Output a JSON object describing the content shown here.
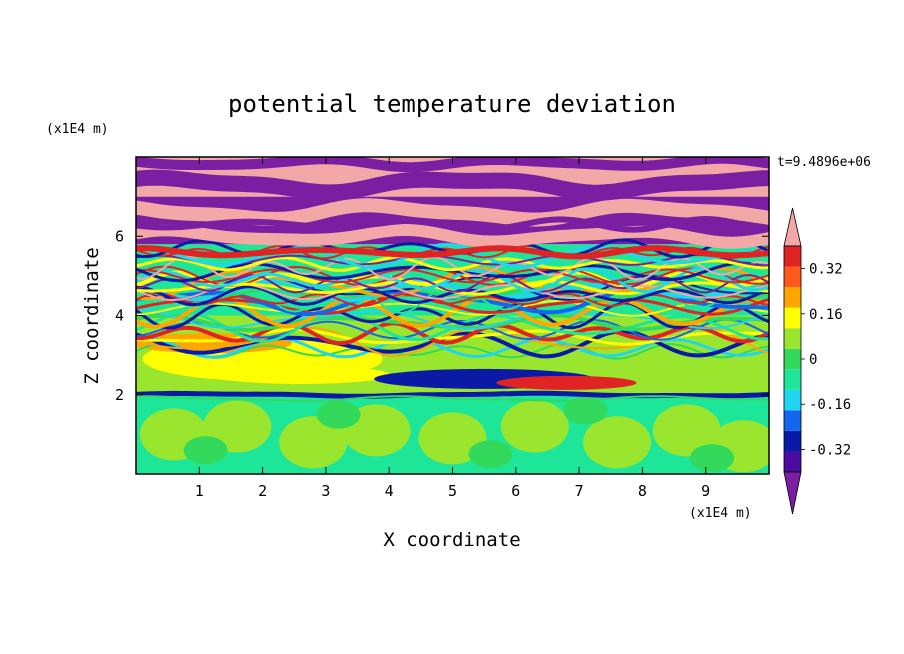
{
  "chart_data": {
    "type": "heatmap",
    "title": "potential temperature deviation",
    "xlabel": "X coordinate",
    "ylabel": "Z coordinate",
    "x_unit": "(x1E4 m)",
    "y_unit": "(x1E4 m)",
    "time_label": "t=9.4896e+06",
    "xlim": [
      0,
      10
    ],
    "ylim": [
      0,
      8
    ],
    "x_ticks": [
      1,
      2,
      3,
      4,
      5,
      6,
      7,
      8,
      9
    ],
    "y_ticks": [
      2,
      4,
      6
    ],
    "colorbar": {
      "levels": [
        -0.48,
        -0.4,
        -0.32,
        -0.24,
        -0.16,
        -0.08,
        0,
        0.08,
        0.16,
        0.24,
        0.32,
        0.4,
        0.48
      ],
      "labels": [
        "-0.32",
        "-0.16",
        "0",
        "0.16",
        "0.32"
      ],
      "label_values": [
        -0.32,
        -0.16,
        0,
        0.16,
        0.32
      ],
      "colors": [
        "#7a1fa2",
        "#4b0ba0",
        "#0a1aa6",
        "#1466ee",
        "#1fd6f0",
        "#1ee699",
        "#33d95a",
        "#9ae62e",
        "#ffff00",
        "#ffa500",
        "#ff5a1a",
        "#e02424",
        "#f4a7a7"
      ]
    },
    "layers": [
      {
        "z_range": [
          7.0,
          8.0
        ],
        "description_color": "#f4a7a7",
        "alt_color": "#7a1fa2"
      },
      {
        "z_range": [
          5.8,
          7.0
        ],
        "description_color": "#7a1fa2",
        "alt_color": "#f4a7a7"
      },
      {
        "z_range": [
          4.0,
          5.8
        ],
        "description_color": "#9ae62e",
        "alt_color": "#e02424"
      },
      {
        "z_range": [
          2.0,
          4.0
        ],
        "description_color": "#ffff00",
        "alt_color": "#33d95a"
      },
      {
        "z_range": [
          0.0,
          2.0
        ],
        "description_color": "#1ee699",
        "alt_color": "#9ae62e"
      }
    ]
  }
}
